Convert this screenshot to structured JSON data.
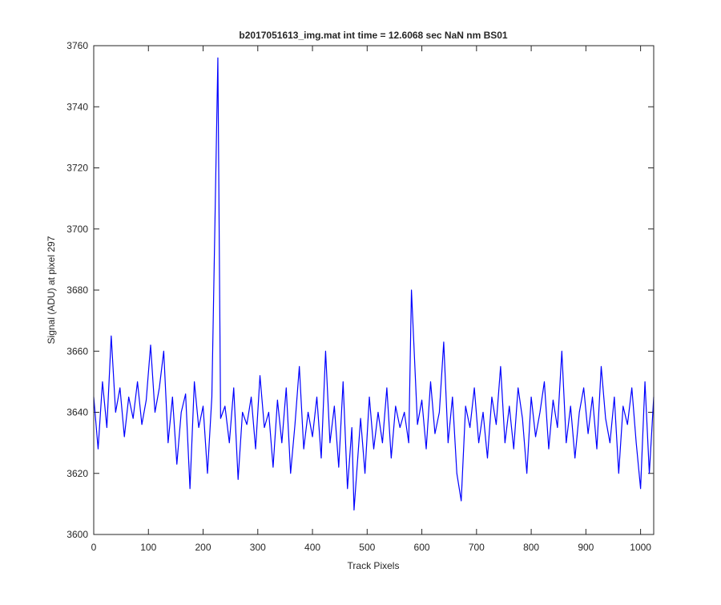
{
  "chart_data": {
    "type": "line",
    "title": "b2017051613_img.mat int time = 12.6068 sec  NaN nm BS01",
    "xlabel": "Track Pixels",
    "ylabel": "Signal (ADU) at pixel 297",
    "x": [
      0,
      8,
      16,
      24,
      32,
      40,
      48,
      56,
      64,
      72,
      80,
      88,
      96,
      104,
      112,
      120,
      128,
      136,
      144,
      152,
      160,
      168,
      176,
      184,
      192,
      200,
      208,
      216,
      227,
      232,
      240,
      248,
      256,
      264,
      272,
      280,
      288,
      296,
      304,
      312,
      320,
      328,
      336,
      344,
      352,
      360,
      368,
      376,
      384,
      392,
      400,
      408,
      416,
      424,
      432,
      440,
      448,
      456,
      464,
      472,
      476,
      488,
      496,
      504,
      512,
      520,
      528,
      536,
      544,
      552,
      560,
      568,
      576,
      581,
      592,
      600,
      608,
      616,
      624,
      632,
      640,
      648,
      656,
      664,
      672,
      680,
      688,
      696,
      704,
      712,
      720,
      728,
      736,
      744,
      752,
      760,
      768,
      776,
      784,
      792,
      800,
      808,
      816,
      824,
      832,
      840,
      848,
      856,
      864,
      872,
      880,
      888,
      896,
      904,
      912,
      920,
      928,
      936,
      944,
      952,
      960,
      968,
      976,
      984,
      992,
      1000,
      1008,
      1016,
      1024
    ],
    "series": [
      {
        "name": "signal",
        "color": "#0000ff",
        "values": [
          3645,
          3628,
          3650,
          3635,
          3665,
          3640,
          3648,
          3632,
          3645,
          3638,
          3650,
          3636,
          3644,
          3662,
          3640,
          3648,
          3660,
          3630,
          3645,
          3623,
          3640,
          3646,
          3615,
          3650,
          3635,
          3642,
          3620,
          3645,
          3756,
          3638,
          3642,
          3630,
          3648,
          3618,
          3640,
          3636,
          3645,
          3628,
          3652,
          3635,
          3640,
          3622,
          3644,
          3630,
          3648,
          3620,
          3636,
          3655,
          3628,
          3640,
          3632,
          3645,
          3625,
          3660,
          3630,
          3642,
          3622,
          3650,
          3615,
          3635,
          3608,
          3638,
          3620,
          3645,
          3628,
          3640,
          3630,
          3648,
          3625,
          3642,
          3635,
          3640,
          3630,
          3680,
          3636,
          3644,
          3628,
          3650,
          3633,
          3640,
          3663,
          3630,
          3645,
          3620,
          3611,
          3642,
          3635,
          3648,
          3630,
          3640,
          3625,
          3645,
          3636,
          3655,
          3630,
          3642,
          3628,
          3648,
          3638,
          3620,
          3645,
          3632,
          3640,
          3650,
          3628,
          3644,
          3635,
          3660,
          3630,
          3642,
          3625,
          3640,
          3648,
          3633,
          3645,
          3628,
          3655,
          3638,
          3630,
          3645,
          3620,
          3642,
          3636,
          3648,
          3630,
          3615,
          3650,
          3620,
          3645
        ]
      }
    ],
    "xlim": [
      0,
      1024
    ],
    "xticks": [
      0,
      100,
      200,
      300,
      400,
      500,
      600,
      700,
      800,
      900,
      1000
    ],
    "ylim": [
      3600,
      3760
    ],
    "yticks": [
      3600,
      3620,
      3640,
      3660,
      3680,
      3700,
      3720,
      3740,
      3760
    ],
    "grid": false
  }
}
